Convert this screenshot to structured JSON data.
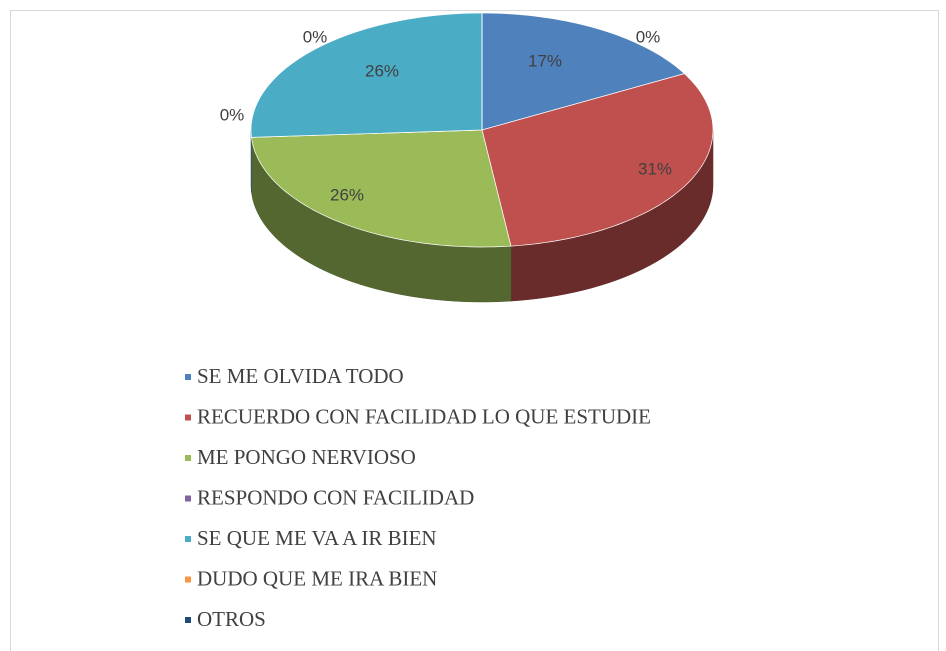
{
  "chart_data": {
    "type": "pie",
    "categories": [
      "SE ME OLVIDA TODO",
      "RECUERDO CON FACILIDAD LO QUE ESTUDIE",
      "ME PONGO NERVIOSO",
      "RESPONDO CON FACILIDAD",
      "SE QUE ME VA A IR BIEN",
      "DUDO QUE ME IRA BIEN",
      "OTROS"
    ],
    "values": [
      17,
      31,
      26,
      0,
      26,
      0,
      0
    ],
    "value_labels": [
      "17%",
      "31%",
      "26%",
      "0%",
      "26%",
      "0%",
      "0%"
    ],
    "colors": [
      "#4f81bd",
      "#c0504d",
      "#9bbb59",
      "#8064a2",
      "#4bacc6",
      "#f79646",
      "#1f497d"
    ],
    "legend": "bottom"
  }
}
